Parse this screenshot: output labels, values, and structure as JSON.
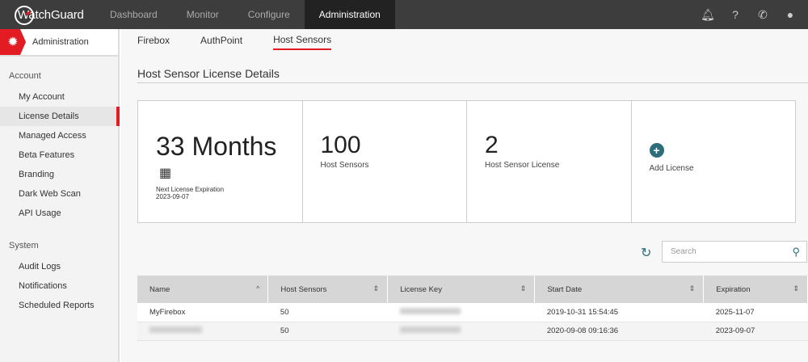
{
  "topbar": {
    "brand": "WatchGuard",
    "nav": [
      "Dashboard",
      "Monitor",
      "Configure",
      "Administration"
    ],
    "active": "Administration",
    "icons": [
      "bell-icon",
      "help-icon",
      "phone-icon",
      "user-icon"
    ]
  },
  "sidebar": {
    "header": "Administration",
    "sections": [
      {
        "title": "Account",
        "items": [
          "My Account",
          "License Details",
          "Managed Access",
          "Beta Features",
          "Branding",
          "Dark Web Scan",
          "API Usage"
        ]
      },
      {
        "title": "System",
        "items": [
          "Audit Logs",
          "Notifications",
          "Scheduled Reports"
        ]
      }
    ],
    "active": "License Details"
  },
  "tabs": [
    "Firebox",
    "AuthPoint",
    "Host Sensors"
  ],
  "active_tab": "Host Sensors",
  "page_title": "Host Sensor License Details",
  "cards": {
    "months": "33 Months",
    "next_label": "Next License Expiration",
    "next_date": "2023-09-07",
    "sensors": "100",
    "sensors_label": "Host Sensors",
    "licenses": "2",
    "licenses_label": "Host Sensor License",
    "add_label": "Add License"
  },
  "search": {
    "placeholder": "Search"
  },
  "table": {
    "headers": [
      "Name",
      "Host Sensors",
      "License Key",
      "Start Date",
      "Expiration"
    ],
    "rows": [
      {
        "name": "MyFirebox",
        "sensors": "50",
        "start": "2019-10-31 15:54:45",
        "exp": "2025-11-07"
      },
      {
        "name": "",
        "sensors": "50",
        "start": "2020-09-08 09:16:36",
        "exp": "2023-09-07"
      }
    ]
  },
  "colors": {
    "accent": "#e31b23",
    "teal": "#2c6e7a"
  }
}
